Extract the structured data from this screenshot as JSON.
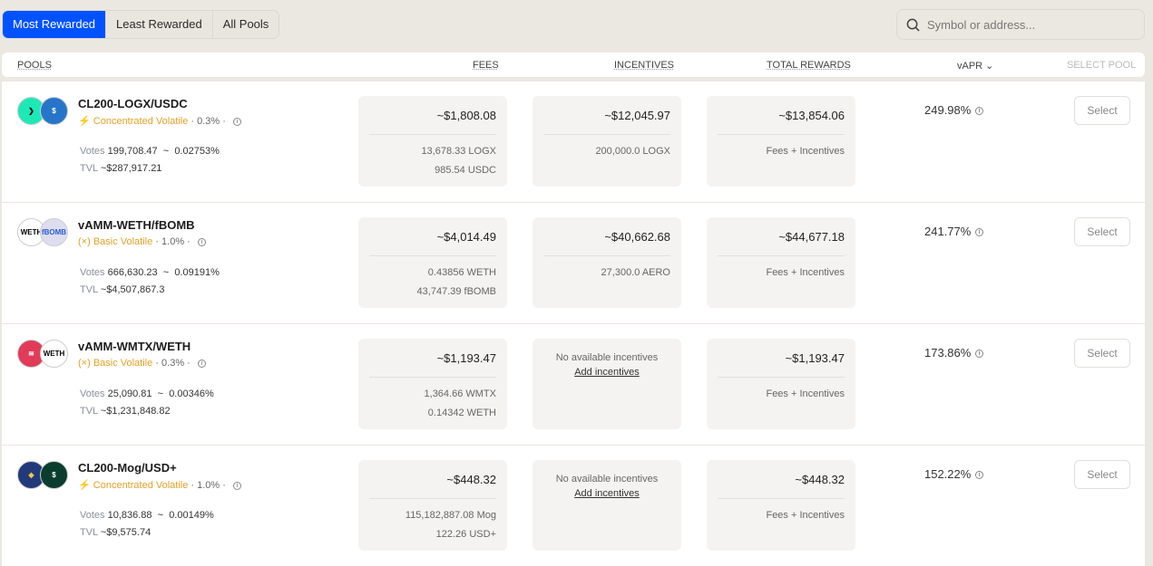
{
  "tabs": [
    "Most Rewarded",
    "Least Rewarded",
    "All Pools"
  ],
  "search": {
    "placeholder": "Symbol or address..."
  },
  "header": {
    "pools": "POOLS",
    "fees": "FEES",
    "incentives": "INCENTIVES",
    "total": "TOTAL REWARDS",
    "vapr": "vAPR ⌄",
    "select": "SELECT POOL"
  },
  "labels": {
    "votes": "Votes",
    "tvl": "TVL",
    "select": "Select",
    "no_inc": "No available incentives",
    "add_inc": "Add incentives",
    "fees_inc": "Fees + Incentives"
  },
  "pools": [
    {
      "name": "CL200-LOGX/USDC",
      "type": "Concentrated Volatile",
      "fee": "0.3%",
      "votes": "199,708.47",
      "votes_pct": "0.02753%",
      "tvl": "~$287,917.21",
      "fees": "~$1,808.08",
      "fees_sub": [
        "13,678.33 LOGX",
        "985.54 USDC"
      ],
      "inc": "~$12,045.97",
      "inc_sub": [
        "200,000.0 LOGX"
      ],
      "total": "~$13,854.06",
      "apr": "249.98%"
    },
    {
      "name": "vAMM-WETH/fBOMB",
      "type": "Basic Volatile",
      "fee": "1.0%",
      "votes": "666,630.23",
      "votes_pct": "0.09191%",
      "tvl": "~$4,507,867.3",
      "fees": "~$4,014.49",
      "fees_sub": [
        "0.43856 WETH",
        "43,747.39 fBOMB"
      ],
      "inc": "~$40,662.68",
      "inc_sub": [
        "27,300.0 AERO"
      ],
      "total": "~$44,677.18",
      "apr": "241.77%"
    },
    {
      "name": "vAMM-WMTX/WETH",
      "type": "Basic Volatile",
      "fee": "0.3%",
      "votes": "25,090.81",
      "votes_pct": "0.00346%",
      "tvl": "~$1,231,848.82",
      "fees": "~$1,193.47",
      "fees_sub": [
        "1,364.66 WMTX",
        "0.14342 WETH"
      ],
      "inc": null,
      "total": "~$1,193.47",
      "apr": "173.86%"
    },
    {
      "name": "CL200-Mog/USD+",
      "type": "Concentrated Volatile",
      "fee": "1.0%",
      "votes": "10,836.88",
      "votes_pct": "0.00149%",
      "tvl": "~$9,575.74",
      "fees": "~$448.32",
      "fees_sub": [
        "115,182,887.08 Mog",
        "122.26 USD+"
      ],
      "inc": null,
      "total": "~$448.32",
      "apr": "152.22%"
    }
  ]
}
